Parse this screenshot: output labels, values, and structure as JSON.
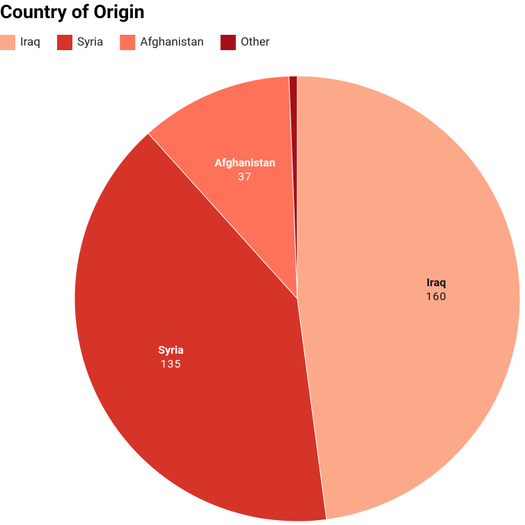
{
  "chart_data": {
    "type": "pie",
    "title": "Country of Origin",
    "categories": [
      "Iraq",
      "Syria",
      "Afghanistan",
      "Other"
    ],
    "values": [
      160,
      135,
      37,
      2
    ],
    "colors": [
      "#fca98a",
      "#d63429",
      "#fe725a",
      "#a50f15"
    ],
    "legend": "top-left"
  }
}
